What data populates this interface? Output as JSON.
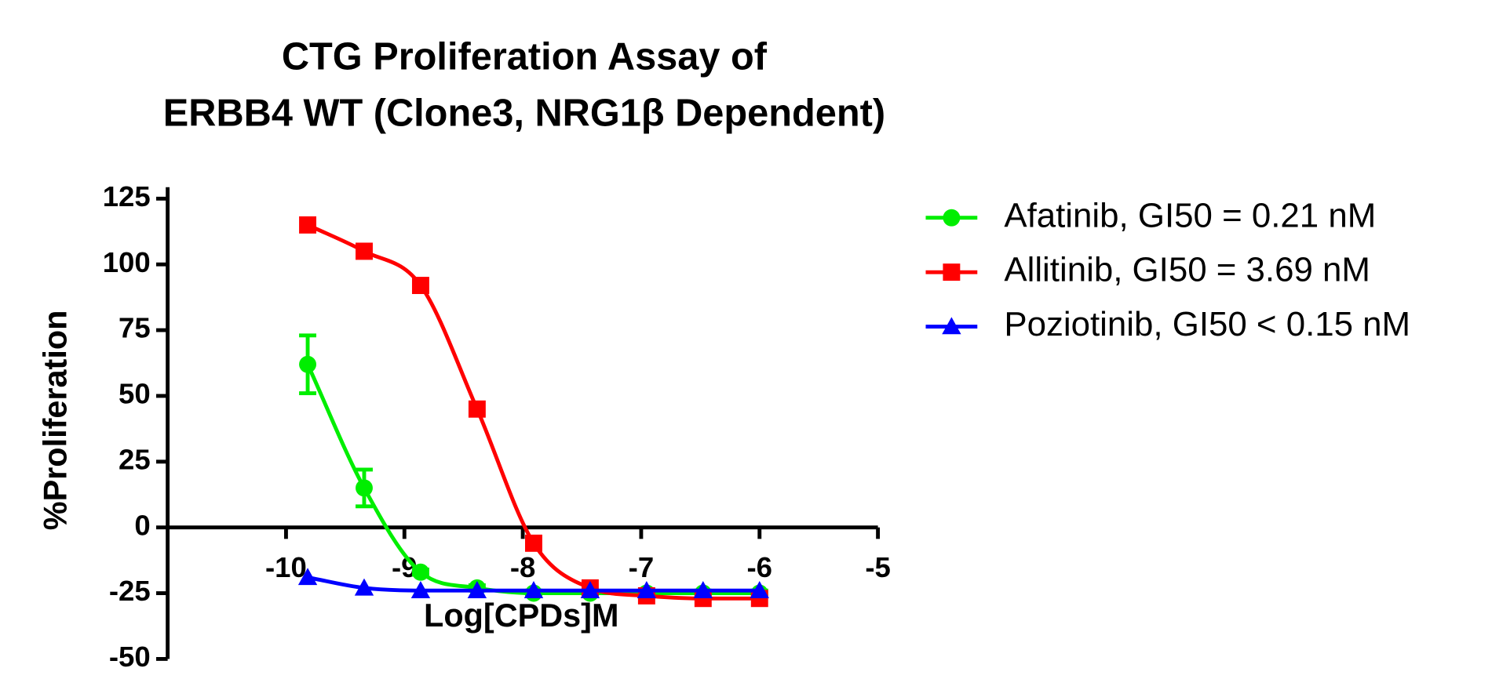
{
  "chart_data": {
    "type": "line",
    "title": [
      "CTG Proliferation Assay of",
      "ERBB4 WT (Clone3, NRG1β Dependent)"
    ],
    "x_label": "Log[CPDs]M",
    "y_label": "%Proliferation",
    "x": [
      -9.817,
      -9.34,
      -8.863,
      -8.386,
      -7.908,
      -7.431,
      -6.954,
      -6.477,
      -6
    ],
    "series": [
      {
        "name": "Afatinib, GI50 = 0.21 nM",
        "color": "#00ee00",
        "marker": "circle",
        "values": [
          62,
          15,
          -17,
          -23,
          -25,
          -25,
          -25,
          -25,
          -25
        ],
        "errors": [
          11,
          7,
          1,
          1,
          1,
          1,
          1,
          1,
          1
        ]
      },
      {
        "name": "Allitinib, GI50 = 3.69 nM",
        "color": "#ff0000",
        "marker": "square",
        "values": [
          115,
          105,
          92,
          45,
          -6,
          -23,
          -26,
          -27,
          -27
        ]
      },
      {
        "name": "Poziotinib, GI50 < 0.15 nM",
        "color": "#0000ff",
        "marker": "triangle",
        "values": [
          -19,
          -23,
          -24,
          -24,
          -24,
          -24,
          -24,
          -24,
          -24
        ]
      }
    ],
    "xlim": [
      -11,
      -5
    ],
    "xticks": [
      -10,
      -9,
      -8,
      -7,
      -6,
      -5
    ],
    "ylim": [
      -50,
      125
    ],
    "yticks": [
      -50,
      -25,
      0,
      25,
      50,
      75,
      100,
      125
    ],
    "legend": "right",
    "grid": false
  }
}
